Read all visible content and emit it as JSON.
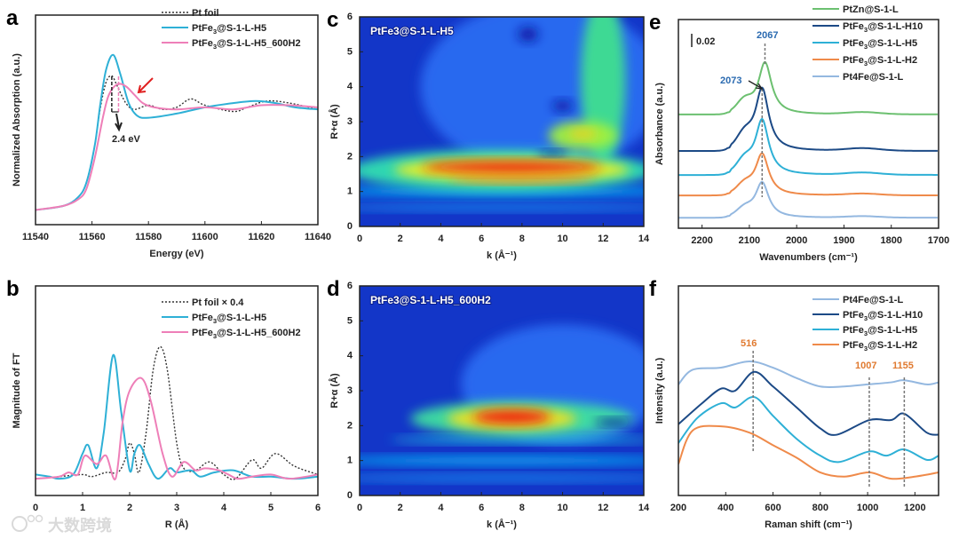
{
  "watermark": "大数跨境",
  "chart_data": [
    {
      "panel_label": "a",
      "type": "line",
      "xlabel": "Energy (eV)",
      "ylabel": "Normalized Absorption (a.u.)",
      "xlim": [
        11540,
        11640
      ],
      "ylim": [
        0,
        1
      ],
      "xticks": [
        "11540",
        "11560",
        "11580",
        "11600",
        "11620",
        "11640"
      ],
      "xtick_values": [
        11540,
        11560,
        11580,
        11600,
        11620,
        11640
      ],
      "series": [
        {
          "name": "Pt foil",
          "color": "#333333",
          "dash": true,
          "x": [
            11540,
            11550,
            11555,
            11558,
            11561,
            11563,
            11565,
            11567,
            11569,
            11572,
            11575,
            11580,
            11585,
            11590,
            11595,
            11600,
            11610,
            11615,
            11622,
            11630,
            11640
          ],
          "y": [
            0.07,
            0.09,
            0.13,
            0.2,
            0.38,
            0.56,
            0.68,
            0.71,
            0.66,
            0.58,
            0.55,
            0.57,
            0.55,
            0.56,
            0.6,
            0.57,
            0.54,
            0.56,
            0.59,
            0.58,
            0.55
          ]
        },
        {
          "name": "PtFe3@S-1-L-H5",
          "color": "#2eb0d6",
          "x": [
            11540,
            11550,
            11555,
            11558,
            11561,
            11563,
            11565,
            11567.5,
            11570,
            11573,
            11576,
            11580,
            11590,
            11600,
            11610,
            11618,
            11625,
            11632,
            11640
          ],
          "y": [
            0.07,
            0.09,
            0.13,
            0.2,
            0.38,
            0.58,
            0.74,
            0.81,
            0.72,
            0.58,
            0.52,
            0.51,
            0.53,
            0.56,
            0.58,
            0.59,
            0.58,
            0.56,
            0.55
          ]
        },
        {
          "name": "PtFe3@S-1-L-H5_600H2",
          "color": "#ee7fb8",
          "x": [
            11540,
            11550,
            11555,
            11558,
            11561,
            11564,
            11566,
            11569,
            11572,
            11575,
            11578,
            11582,
            11590,
            11600,
            11610,
            11620,
            11630,
            11640
          ],
          "y": [
            0.07,
            0.09,
            0.12,
            0.17,
            0.32,
            0.52,
            0.62,
            0.67,
            0.66,
            0.62,
            0.58,
            0.56,
            0.55,
            0.56,
            0.55,
            0.57,
            0.57,
            0.56
          ]
        }
      ],
      "annotations": [
        {
          "text": "2.4 eV",
          "color": "#222222"
        }
      ],
      "edge_shift_markers_eV": [
        11567,
        11569.4
      ]
    },
    {
      "panel_label": "b",
      "type": "line",
      "xlabel": "R (Å)",
      "ylabel": "Magnitude of FT",
      "xlim": [
        0,
        6
      ],
      "ylim": [
        0,
        1
      ],
      "xticks": [
        "0",
        "1",
        "2",
        "3",
        "4",
        "5",
        "6"
      ],
      "xtick_values": [
        0,
        1,
        2,
        3,
        4,
        5,
        6
      ],
      "series": [
        {
          "name": "Pt foil × 0.4",
          "color": "#333333",
          "dash": true,
          "x": [
            0,
            0.5,
            1.0,
            1.2,
            1.5,
            1.75,
            1.9,
            2.0,
            2.1,
            2.2,
            2.35,
            2.5,
            2.65,
            2.8,
            3.0,
            3.15,
            3.4,
            3.7,
            4.0,
            4.25,
            4.6,
            4.8,
            5.1,
            5.5,
            6
          ],
          "y": [
            0.08,
            0.09,
            0.1,
            0.09,
            0.11,
            0.11,
            0.17,
            0.25,
            0.2,
            0.11,
            0.3,
            0.6,
            0.71,
            0.6,
            0.25,
            0.13,
            0.12,
            0.16,
            0.1,
            0.08,
            0.17,
            0.13,
            0.2,
            0.14,
            0.1
          ]
        },
        {
          "name": "PtFe3@S-1-L-H5",
          "color": "#2eb0d6",
          "x": [
            0,
            0.3,
            0.5,
            0.8,
            1.0,
            1.12,
            1.3,
            1.45,
            1.65,
            1.82,
            2.0,
            2.1,
            2.22,
            2.4,
            2.6,
            2.85,
            3.0,
            3.3,
            3.5,
            3.8,
            4.2,
            4.6,
            5,
            5.5,
            6
          ],
          "y": [
            0.1,
            0.09,
            0.08,
            0.1,
            0.2,
            0.24,
            0.13,
            0.3,
            0.67,
            0.4,
            0.12,
            0.2,
            0.24,
            0.15,
            0.08,
            0.13,
            0.11,
            0.12,
            0.09,
            0.11,
            0.12,
            0.09,
            0.09,
            0.08,
            0.09
          ]
        },
        {
          "name": "PtFe3@S-1-L-H5_600H2",
          "color": "#ee7fb8",
          "x": [
            0,
            0.5,
            0.7,
            0.9,
            1.05,
            1.3,
            1.5,
            1.7,
            1.85,
            2.0,
            2.25,
            2.45,
            2.7,
            2.9,
            3.15,
            3.4,
            3.6,
            3.9,
            4.1,
            4.3,
            4.6,
            5,
            5.4,
            6
          ],
          "y": [
            0.08,
            0.09,
            0.11,
            0.1,
            0.19,
            0.15,
            0.19,
            0.08,
            0.35,
            0.5,
            0.56,
            0.45,
            0.2,
            0.09,
            0.16,
            0.12,
            0.13,
            0.12,
            0.1,
            0.08,
            0.09,
            0.1,
            0.08,
            0.1
          ]
        }
      ]
    },
    {
      "panel_label": "c",
      "type": "heatmap",
      "title": "PtFe3@S-1-L-H5",
      "xlabel": "k (Å⁻¹)",
      "ylabel": "R+α (Å)",
      "xlim": [
        0,
        14
      ],
      "ylim": [
        0,
        6
      ],
      "xticks": [
        "0",
        "2",
        "4",
        "6",
        "8",
        "10",
        "12",
        "14"
      ],
      "xtick_values": [
        0,
        2,
        4,
        6,
        8,
        10,
        12,
        14
      ],
      "yticks": [
        "0",
        "1",
        "2",
        "3",
        "4",
        "5",
        "6"
      ],
      "ytick_values": [
        0,
        1,
        2,
        3,
        4,
        5,
        6
      ],
      "background": "#1336c8",
      "hotspots": [
        {
          "k": 9,
          "R": 4,
          "rk": 6,
          "rR": 2.4,
          "color": "#2a6cf2"
        },
        {
          "k": 7,
          "R": 1.0,
          "rk": 9,
          "rR": 0.14,
          "color": "#10b8f8"
        },
        {
          "k": 7,
          "R": 0.55,
          "rk": 9,
          "rR": 0.1,
          "color": "#1890f0"
        },
        {
          "k": 12,
          "R": 4.2,
          "rk": 1.1,
          "rR": 2.4,
          "color": "#40e090"
        },
        {
          "k": 7,
          "R": 1.6,
          "rk": 7.5,
          "rR": 0.6,
          "color": "#30e0b0"
        },
        {
          "k": 7.5,
          "R": 1.62,
          "rk": 5.8,
          "rR": 0.34,
          "color": "#f0ef20"
        },
        {
          "k": 7.5,
          "R": 1.7,
          "rk": 4.4,
          "rR": 0.17,
          "color": "#f01a10"
        },
        {
          "k": 8,
          "R": 1.35,
          "rk": 3.6,
          "rR": 0.1,
          "color": "#f07a20"
        },
        {
          "k": 11,
          "R": 2.6,
          "rk": 1.7,
          "rR": 0.42,
          "color": "#a0f040"
        },
        {
          "k": 11,
          "R": 2.65,
          "rk": 0.7,
          "rR": 0.13,
          "color": "#f0d020"
        },
        {
          "k": 10,
          "R": 3.45,
          "rk": 0.5,
          "rR": 0.15,
          "color": "#0818a0"
        },
        {
          "k": 8.3,
          "R": 5.5,
          "rk": 0.5,
          "rR": 0.2,
          "color": "#0818a0"
        },
        {
          "k": 9.5,
          "R": 2.1,
          "rk": 0.7,
          "rR": 0.07,
          "color": "#0818a0"
        }
      ]
    },
    {
      "panel_label": "d",
      "type": "heatmap",
      "title": "PtFe3@S-1-L-H5_600H2",
      "xlabel": "k (Å⁻¹)",
      "ylabel": "R+α (Å)",
      "xlim": [
        0,
        14
      ],
      "ylim": [
        0,
        6
      ],
      "xticks": [
        "0",
        "2",
        "4",
        "6",
        "8",
        "10",
        "12",
        "14"
      ],
      "xtick_values": [
        0,
        2,
        4,
        6,
        8,
        10,
        12,
        14
      ],
      "yticks": [
        "0",
        "1",
        "2",
        "3",
        "4",
        "5",
        "6"
      ],
      "ytick_values": [
        0,
        1,
        2,
        3,
        4,
        5,
        6
      ],
      "background": "#1336c8",
      "hotspots": [
        {
          "k": 10,
          "R": 3.2,
          "rk": 5,
          "rR": 1.7,
          "color": "#2a6cf2"
        },
        {
          "k": 7,
          "R": 1.0,
          "rk": 9,
          "rR": 0.12,
          "color": "#10b8f8"
        },
        {
          "k": 7,
          "R": 0.5,
          "rk": 9,
          "rR": 0.1,
          "color": "#1890f0"
        },
        {
          "k": 8,
          "R": 1.6,
          "rk": 6.5,
          "rR": 0.1,
          "color": "#20c8e0"
        },
        {
          "k": 8,
          "R": 2.2,
          "rk": 5.5,
          "rR": 0.5,
          "color": "#40e0a0"
        },
        {
          "k": 7.5,
          "R": 2.2,
          "rk": 3.2,
          "rR": 0.32,
          "color": "#f0e020"
        },
        {
          "k": 7.5,
          "R": 2.25,
          "rk": 1.9,
          "rR": 0.2,
          "color": "#f01a10"
        },
        {
          "k": 12.5,
          "R": 2.1,
          "rk": 0.9,
          "rR": 0.1,
          "color": "#0818a0"
        }
      ]
    },
    {
      "panel_label": "e",
      "type": "line",
      "xlabel": "Wavenumbers (cm⁻¹)",
      "ylabel": "Absorbance (a.u.)",
      "xlim": [
        2250,
        1700
      ],
      "ylim": [
        0,
        1
      ],
      "xticks": [
        "2200",
        "2100",
        "2000",
        "1900",
        "1800",
        "1700"
      ],
      "xtick_values": [
        2200,
        2100,
        2000,
        1900,
        1800,
        1700
      ],
      "scale_bar": "0.02",
      "series": [
        {
          "name": "PtZn@S-1-L",
          "color": "#6cc070",
          "baseline": 0.545,
          "peak_height": 0.25,
          "peak_position": 2067
        },
        {
          "name": "PtFe3@S-1-L-H10",
          "color": "#1c4a86",
          "baseline": 0.37,
          "peak_height": 0.3,
          "peak_position": 2073
        },
        {
          "name": "PtFe3@S-1-L-H5",
          "color": "#2eb0d6",
          "baseline": 0.255,
          "peak_height": 0.265,
          "peak_position": 2073
        },
        {
          "name": "PtFe3@S-1-L-H2",
          "color": "#ef8a4a",
          "baseline": 0.157,
          "peak_height": 0.2,
          "peak_position": 2073
        },
        {
          "name": "Pt4Fe@S-1-L",
          "color": "#94b8e0",
          "baseline": 0.05,
          "peak_height": 0.17,
          "peak_position": 2073
        }
      ],
      "annotations": [
        {
          "text": "2067",
          "x": 2067,
          "color": "#2a6ab0"
        },
        {
          "text": "2073",
          "x": 2073,
          "color": "#2a6ab0"
        }
      ]
    },
    {
      "panel_label": "f",
      "type": "line",
      "xlabel": "Raman shift (cm⁻¹)",
      "ylabel": "Intensity (a.u.)",
      "xlim": [
        200,
        1300
      ],
      "ylim": [
        0,
        1
      ],
      "xticks": [
        "200",
        "400",
        "600",
        "800",
        "1000",
        "1200"
      ],
      "xtick_values": [
        200,
        400,
        600,
        800,
        1000,
        1200
      ],
      "series": [
        {
          "name": "Pt4Fe@S-1-L",
          "color": "#94b8e0",
          "x": [
            200,
            260,
            380,
            500,
            600,
            700,
            800,
            900,
            1000,
            1100,
            1155,
            1250,
            1300
          ],
          "y": [
            0.53,
            0.6,
            0.61,
            0.64,
            0.61,
            0.56,
            0.52,
            0.52,
            0.53,
            0.54,
            0.55,
            0.53,
            0.54
          ]
        },
        {
          "name": "PtFe3@S-1-L-H10",
          "color": "#1c4a86",
          "x": [
            200,
            300,
            380,
            440,
            520,
            600,
            700,
            800,
            870,
            1007,
            1100,
            1155,
            1250,
            1300
          ],
          "y": [
            0.34,
            0.44,
            0.51,
            0.5,
            0.59,
            0.52,
            0.42,
            0.32,
            0.29,
            0.36,
            0.36,
            0.39,
            0.3,
            0.29
          ]
        },
        {
          "name": "PtFe3@S-1-L-H5",
          "color": "#2eb0d6",
          "x": [
            200,
            280,
            380,
            440,
            520,
            600,
            700,
            800,
            880,
            1007,
            1080,
            1155,
            1250,
            1300
          ],
          "y": [
            0.25,
            0.37,
            0.44,
            0.42,
            0.47,
            0.38,
            0.27,
            0.19,
            0.16,
            0.21,
            0.19,
            0.22,
            0.17,
            0.19
          ]
        },
        {
          "name": "PtFe3@S-1-L-H2",
          "color": "#ef8a4a",
          "x": [
            200,
            260,
            380,
            500,
            600,
            700,
            800,
            900,
            1007,
            1100,
            1200,
            1300
          ],
          "y": [
            0.15,
            0.31,
            0.33,
            0.3,
            0.24,
            0.18,
            0.11,
            0.09,
            0.11,
            0.08,
            0.09,
            0.11
          ]
        }
      ],
      "annotations": [
        {
          "text": "516",
          "x": 516,
          "color": "#e07a30"
        },
        {
          "text": "1007",
          "x": 1007,
          "color": "#e07a30"
        },
        {
          "text": "1155",
          "x": 1155,
          "color": "#e07a30"
        }
      ]
    }
  ]
}
